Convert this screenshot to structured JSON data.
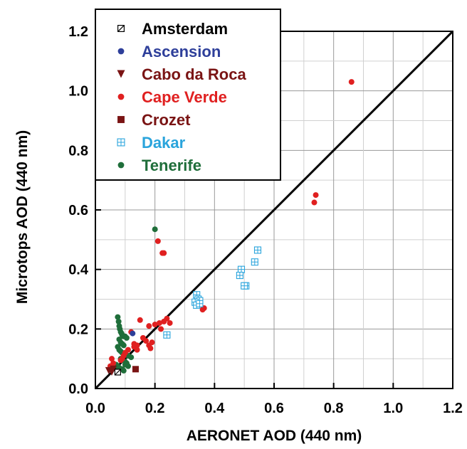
{
  "chart_data": {
    "type": "scatter",
    "xlabel": "AERONET AOD (440 nm)",
    "ylabel": "Microtops AOD (440 nm)",
    "xlim": [
      0.0,
      1.2
    ],
    "ylim": [
      0.0,
      1.2
    ],
    "x_ticks": [
      "0.0",
      "0.2",
      "0.4",
      "0.6",
      "0.8",
      "1.0",
      "1.2"
    ],
    "y_ticks": [
      "0.0",
      "0.2",
      "0.4",
      "0.6",
      "0.8",
      "1.0",
      "1.2"
    ],
    "grid": true,
    "legend_position": "top-left",
    "reference_line": {
      "x": [
        0.0,
        1.2
      ],
      "y": [
        0.0,
        1.2
      ],
      "color": "#000000"
    },
    "series": [
      {
        "name": "Amsterdam",
        "marker": "square-slash",
        "color": "#000000",
        "x": [
          0.075
        ],
        "y": [
          0.055
        ]
      },
      {
        "name": "Ascension",
        "marker": "circle",
        "color": "#2e3f9a",
        "x": [
          0.125
        ],
        "y": [
          0.185
        ]
      },
      {
        "name": "Cabo da Roca",
        "marker": "triangle-down",
        "color": "#7a1414",
        "x": [
          0.045,
          0.055,
          0.06
        ],
        "y": [
          0.06,
          0.055,
          0.065
        ]
      },
      {
        "name": "Cape Verde",
        "marker": "circle",
        "color": "#e02020",
        "x": [
          0.86,
          0.74,
          0.735,
          0.21,
          0.225,
          0.23,
          0.365,
          0.36,
          0.15,
          0.18,
          0.2,
          0.215,
          0.23,
          0.24,
          0.25,
          0.16,
          0.17,
          0.19,
          0.22,
          0.12,
          0.13,
          0.14,
          0.11,
          0.1,
          0.09,
          0.085,
          0.06,
          0.055,
          0.05,
          0.18,
          0.185,
          0.13,
          0.14,
          0.095
        ],
        "y": [
          1.03,
          0.65,
          0.625,
          0.495,
          0.455,
          0.455,
          0.27,
          0.265,
          0.23,
          0.21,
          0.215,
          0.22,
          0.225,
          0.235,
          0.22,
          0.17,
          0.16,
          0.155,
          0.2,
          0.19,
          0.15,
          0.145,
          0.13,
          0.12,
          0.1,
          0.095,
          0.085,
          0.1,
          0.075,
          0.145,
          0.135,
          0.14,
          0.13,
          0.11
        ]
      },
      {
        "name": "Crozet",
        "marker": "square",
        "color": "#7a1414",
        "x": [
          0.135
        ],
        "y": [
          0.065
        ]
      },
      {
        "name": "Dakar",
        "marker": "square-grid",
        "color": "#2aa4dc",
        "x": [
          0.545,
          0.535,
          0.49,
          0.485,
          0.505,
          0.5,
          0.34,
          0.345,
          0.35,
          0.335,
          0.34,
          0.35,
          0.24
        ],
        "y": [
          0.465,
          0.425,
          0.4,
          0.38,
          0.345,
          0.345,
          0.315,
          0.3,
          0.295,
          0.29,
          0.28,
          0.285,
          0.18
        ]
      },
      {
        "name": "Tenerife",
        "marker": "circle",
        "color": "#1f6e3a",
        "x": [
          0.2,
          0.075,
          0.078,
          0.08,
          0.082,
          0.085,
          0.088,
          0.09,
          0.095,
          0.1,
          0.105,
          0.08,
          0.085,
          0.09,
          0.095,
          0.075,
          0.08,
          0.085,
          0.09,
          0.1,
          0.11,
          0.12,
          0.085,
          0.09,
          0.1,
          0.105,
          0.07,
          0.075,
          0.08,
          0.09,
          0.095,
          0.1,
          0.11
        ],
        "y": [
          0.535,
          0.24,
          0.225,
          0.21,
          0.2,
          0.19,
          0.185,
          0.18,
          0.175,
          0.175,
          0.17,
          0.165,
          0.155,
          0.15,
          0.145,
          0.14,
          0.13,
          0.125,
          0.12,
          0.115,
          0.11,
          0.105,
          0.1,
          0.095,
          0.09,
          0.085,
          0.08,
          0.075,
          0.07,
          0.065,
          0.06,
          0.08,
          0.075
        ]
      }
    ]
  }
}
